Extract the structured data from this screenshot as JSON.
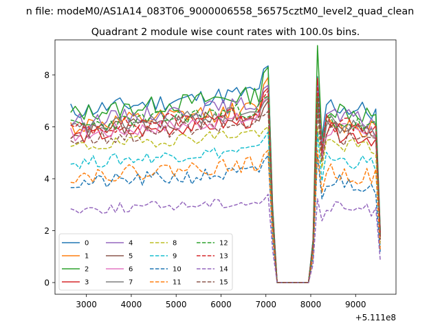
{
  "chart_data": {
    "type": "line",
    "suptitle": "n file: modeM0/AS1A14_083T06_9000006558_56575cztM0_level2_quad_clean",
    "title": "Quadrant 2 module wise count rates with 100.0s bins.",
    "xlabel": "",
    "ylabel": "",
    "x_offset_label": "+5.111e8",
    "xlim": [
      2300,
      9900
    ],
    "ylim": [
      -0.45,
      9.35
    ],
    "x_ticks": [
      3000,
      4000,
      5000,
      6000,
      7000,
      8000,
      9000
    ],
    "y_ticks": [
      0,
      2,
      4,
      6,
      8
    ],
    "x_start": 2650,
    "x_step": 100,
    "legend_position": "lower-left",
    "series": [
      {
        "name": "0",
        "color": "#1f77b4",
        "dashed": false,
        "mean": 6.6,
        "high": 8.35,
        "noise": 0.35,
        "postfactor": 0.95,
        "seed": 11
      },
      {
        "name": "1",
        "color": "#ff7f0e",
        "dashed": false,
        "mean": 6.0,
        "high": 7.9,
        "noise": 0.35,
        "postfactor": 0.95,
        "seed": 12
      },
      {
        "name": "2",
        "color": "#2ca02c",
        "dashed": false,
        "mean": 6.5,
        "high": 8.3,
        "noise": 0.35,
        "postfactor": 1.1,
        "seed": 13
      },
      {
        "name": "3",
        "color": "#d62728",
        "dashed": false,
        "mean": 5.6,
        "high": 7.5,
        "noise": 0.3,
        "postfactor": 1.05,
        "seed": 14
      },
      {
        "name": "4",
        "color": "#9467bd",
        "dashed": false,
        "mean": 6.2,
        "high": 7.6,
        "noise": 0.3,
        "postfactor": 1.0,
        "seed": 15
      },
      {
        "name": "5",
        "color": "#8c564b",
        "dashed": false,
        "mean": 5.8,
        "high": 7.0,
        "noise": 0.3,
        "postfactor": 1.0,
        "seed": 16
      },
      {
        "name": "6",
        "color": "#e377c2",
        "dashed": false,
        "mean": 5.7,
        "high": 7.2,
        "noise": 0.3,
        "postfactor": 1.0,
        "seed": 17
      },
      {
        "name": "7",
        "color": "#7f7f7f",
        "dashed": false,
        "mean": 5.9,
        "high": 7.1,
        "noise": 0.3,
        "postfactor": 1.0,
        "seed": 18
      },
      {
        "name": "8",
        "color": "#bcbd22",
        "dashed": true,
        "mean": 5.2,
        "high": 6.0,
        "noise": 0.25,
        "postfactor": 1.0,
        "seed": 19
      },
      {
        "name": "9",
        "color": "#17becf",
        "dashed": true,
        "mean": 4.6,
        "high": 5.8,
        "noise": 0.25,
        "postfactor": 1.0,
        "seed": 20
      },
      {
        "name": "10",
        "color": "#1f77b4",
        "dashed": true,
        "mean": 3.8,
        "high": 4.9,
        "noise": 0.3,
        "postfactor": 1.0,
        "seed": 21
      },
      {
        "name": "11",
        "color": "#ff7f0e",
        "dashed": true,
        "mean": 4.1,
        "high": 5.1,
        "noise": 0.3,
        "postfactor": 1.0,
        "seed": 22
      },
      {
        "name": "12",
        "color": "#2ca02c",
        "dashed": true,
        "mean": 6.0,
        "high": 7.2,
        "noise": 0.3,
        "postfactor": 1.0,
        "seed": 23
      },
      {
        "name": "13",
        "color": "#d62728",
        "dashed": true,
        "mean": 5.9,
        "high": 7.4,
        "noise": 0.3,
        "postfactor": 1.05,
        "seed": 24
      },
      {
        "name": "14",
        "color": "#9467bd",
        "dashed": true,
        "mean": 2.8,
        "high": 3.4,
        "noise": 0.2,
        "postfactor": 0.95,
        "seed": 25
      },
      {
        "name": "15",
        "color": "#8c564b",
        "dashed": true,
        "mean": 5.5,
        "high": 6.6,
        "noise": 0.3,
        "postfactor": 1.0,
        "seed": 26
      }
    ]
  }
}
